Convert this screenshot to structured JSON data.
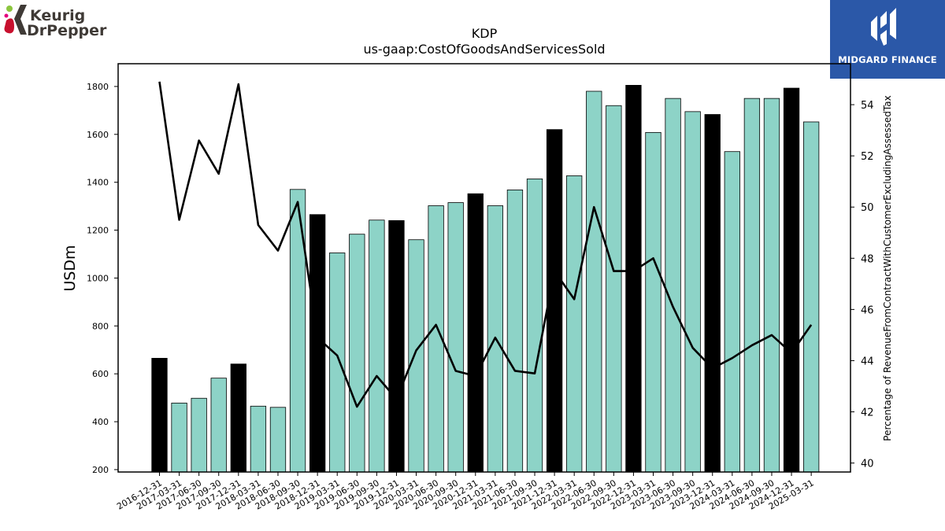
{
  "title": "KDP",
  "subtitle": "us-gaap:CostOfGoodsAndServicesSold",
  "logos": {
    "company_line1": "Keurig",
    "company_line2": "DrPepper",
    "watermark": "MIDGARD FINANCE"
  },
  "colors": {
    "bar_quarter": "#8dd3c7",
    "bar_year_end": "#000000",
    "line": "#000000",
    "midgard_bg": "#2b58a8"
  },
  "chart_data": {
    "type": "bar",
    "categories": [
      "2016-12-31",
      "2017-03-31",
      "2017-06-30",
      "2017-09-30",
      "2017-12-31",
      "2018-03-31",
      "2018-06-30",
      "2018-09-30",
      "2018-12-31",
      "2019-03-31",
      "2019-06-30",
      "2019-09-30",
      "2019-12-31",
      "2020-03-31",
      "2020-06-30",
      "2020-09-30",
      "2020-12-31",
      "2021-03-31",
      "2021-06-30",
      "2021-09-30",
      "2021-12-31",
      "2022-03-31",
      "2022-06-30",
      "2022-09-30",
      "2022-12-31",
      "2023-03-31",
      "2023-06-30",
      "2023-09-30",
      "2023-12-31",
      "2024-03-31",
      "2024-06-30",
      "2024-09-30",
      "2024-12-31",
      "2025-03-31"
    ],
    "series": [
      {
        "axis": "left",
        "kind": "bar",
        "values": [
          665,
          478,
          498,
          582,
          641,
          465,
          460,
          1370,
          1265,
          1105,
          1183,
          1242,
          1240,
          1160,
          1302,
          1315,
          1352,
          1302,
          1368,
          1414,
          1620,
          1427,
          1780,
          1720,
          1805,
          1608,
          1750,
          1695,
          1683,
          1528,
          1750,
          1750,
          1793,
          1652
        ],
        "year_end_highlight": [
          true,
          false,
          false,
          false,
          true,
          false,
          false,
          false,
          true,
          false,
          false,
          false,
          true,
          false,
          false,
          false,
          true,
          false,
          false,
          false,
          true,
          false,
          false,
          false,
          true,
          false,
          false,
          false,
          true,
          false,
          false,
          false,
          true,
          false
        ]
      },
      {
        "axis": "right",
        "kind": "line",
        "values": [
          54.9,
          49.5,
          52.6,
          51.3,
          54.8,
          49.3,
          48.3,
          50.2,
          44.9,
          44.2,
          42.2,
          43.4,
          42.5,
          44.4,
          45.4,
          43.6,
          43.4,
          44.9,
          43.6,
          43.5,
          47.5,
          46.4,
          50.0,
          47.5,
          47.5,
          48.0,
          46.1,
          44.5,
          43.7,
          44.1,
          44.6,
          45.0,
          44.3,
          45.4
        ]
      }
    ],
    "ylabel": "USDm",
    "y2label": "Percentage of RevenueFromContractWithCustomerExcludingAssessedTax",
    "ylim": [
      190,
      1895
    ],
    "y2lim": [
      39.65,
      55.6
    ],
    "yticks": [
      200,
      400,
      600,
      800,
      1000,
      1200,
      1400,
      1600,
      1800
    ],
    "y2ticks": [
      40,
      42,
      44,
      46,
      48,
      50,
      52,
      54
    ],
    "grid": false,
    "legend": "none"
  }
}
